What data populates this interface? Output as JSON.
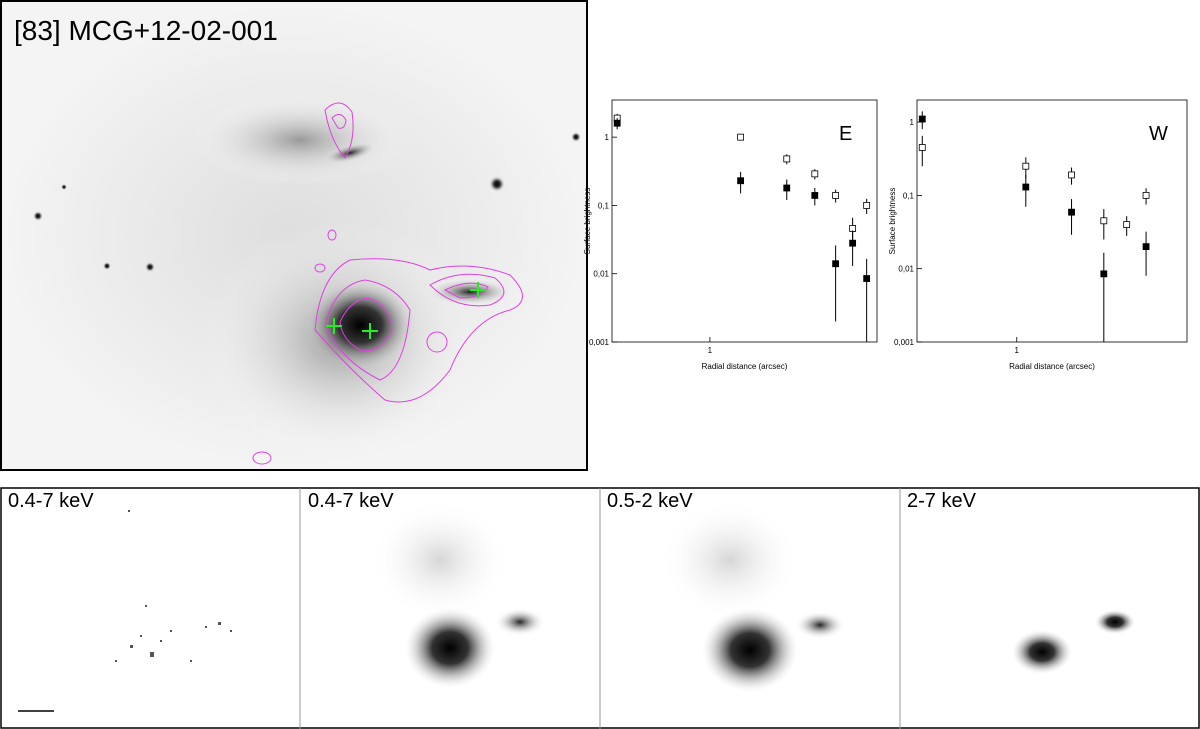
{
  "title": "[83] MCG+12-02-001",
  "panels": [
    "0.4-7 keV",
    "0.4-7 keV",
    "0.5-2 keV",
    "2-7 keV"
  ],
  "chart_data": [
    {
      "type": "scatter",
      "label": "E",
      "xlabel": "Radial distance (arcsec)",
      "ylabel": "Surface brightness",
      "xlog": true,
      "ylog": true,
      "xlim": [
        0.35,
        6
      ],
      "ylim": [
        0.001,
        3.5
      ],
      "xticks": [
        1
      ],
      "yticks": [
        1,
        {
          "value": 0.1,
          "label": "0,1"
        },
        {
          "value": 0.01,
          "label": "0,01"
        },
        {
          "value": 0.001,
          "label": "0,001"
        }
      ],
      "x": [
        0.37,
        1.39,
        2.28,
        3.08,
        3.85,
        4.62,
        5.37
      ],
      "series": [
        {
          "color": "#000000",
          "filled": false,
          "values": [
            1.9,
            1.0,
            0.48,
            0.29,
            0.14,
            0.046,
            0.1
          ],
          "errors": [
            0.3,
            0.1,
            0.08,
            0.05,
            0.03,
            0.02,
            0.025
          ]
        },
        {
          "color": "#000000",
          "filled": true,
          "values": [
            1.6,
            0.23,
            0.18,
            0.14,
            0.014,
            0.028,
            0.0085
          ],
          "errors": [
            0.3,
            0.08,
            0.06,
            0.04,
            0.012,
            0.015,
            0.008
          ]
        }
      ]
    },
    {
      "type": "scatter",
      "label": "W",
      "xlabel": "Radial distance (arcsec)",
      "ylabel": "Surface brightness",
      "xlog": true,
      "ylog": true,
      "xlim": [
        0.35,
        6
      ],
      "ylim": [
        0.001,
        2
      ],
      "xticks": [
        1
      ],
      "yticks": [
        1,
        {
          "value": 0.1,
          "label": "0,1"
        },
        {
          "value": 0.01,
          "label": "0,01"
        },
        {
          "value": 0.001,
          "label": "0,001"
        }
      ],
      "x": [
        0.37,
        1.1,
        1.78,
        2.5,
        3.18,
        3.9
      ],
      "series": [
        {
          "color": "#000000",
          "filled": false,
          "values": [
            0.45,
            0.25,
            0.19,
            0.045,
            0.04,
            0.1
          ],
          "errors": [
            0.2,
            0.08,
            0.05,
            0.02,
            0.012,
            0.025
          ]
        },
        {
          "color": "#000000",
          "filled": true,
          "values": [
            1.1,
            0.13,
            0.059,
            0.0085,
            null,
            0.02
          ],
          "errors": [
            0.3,
            0.06,
            0.03,
            0.008,
            null,
            0.012
          ]
        }
      ]
    }
  ]
}
